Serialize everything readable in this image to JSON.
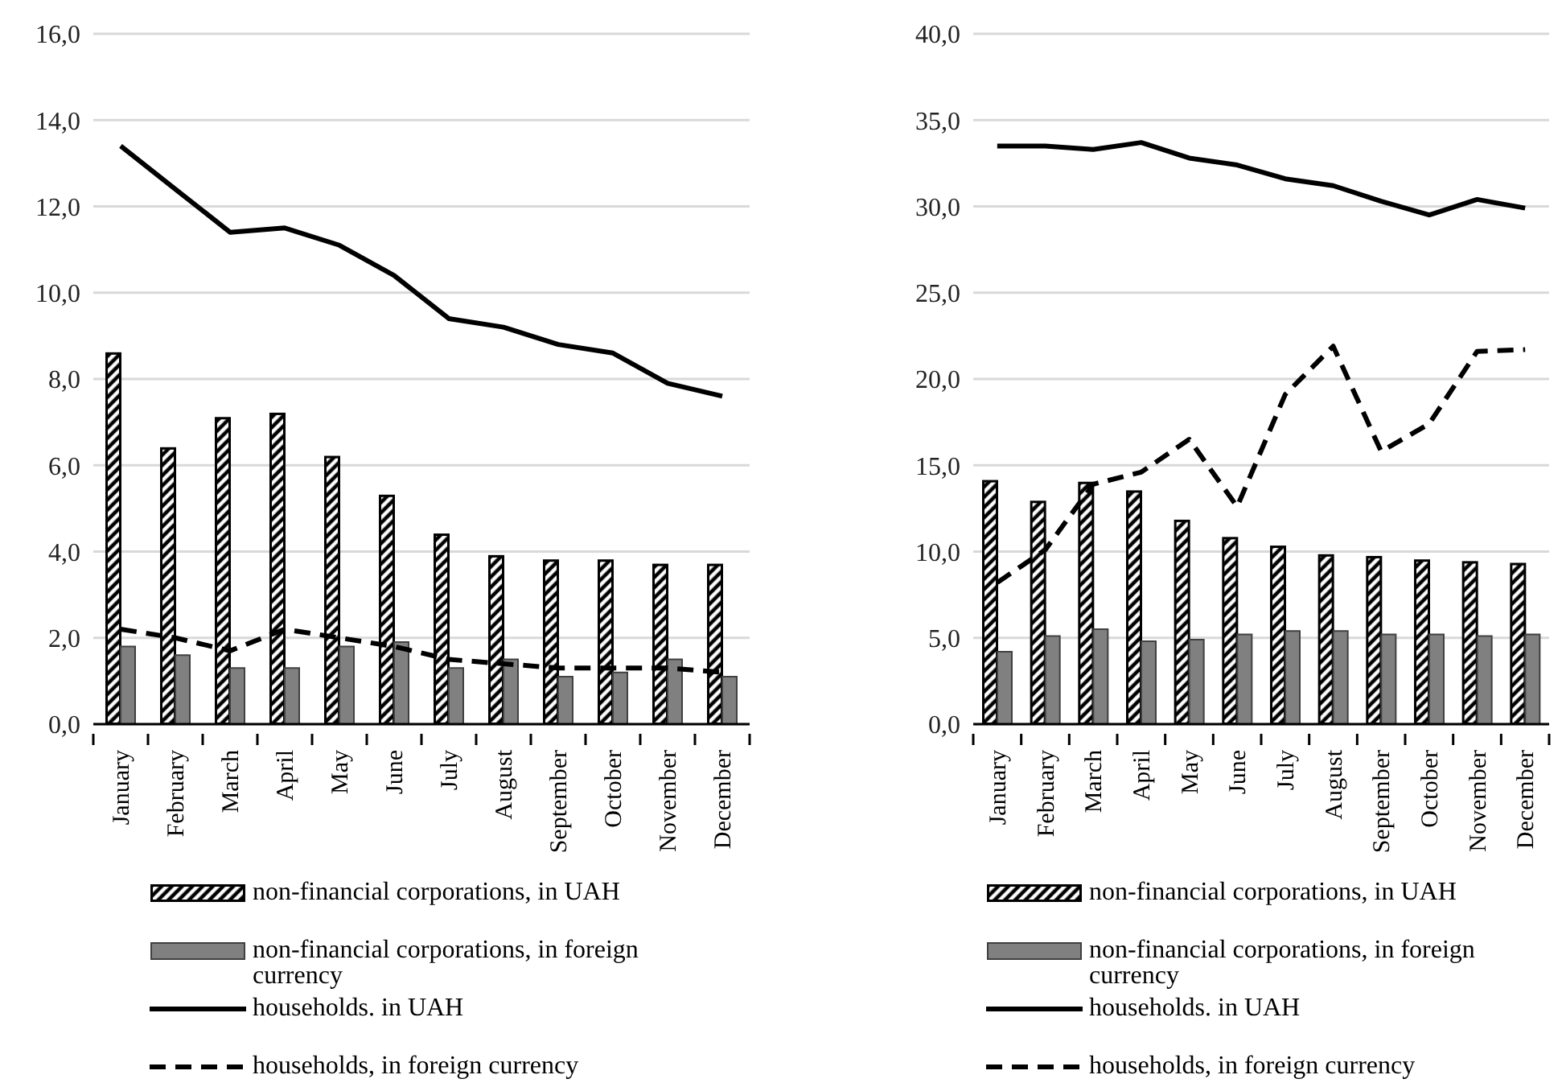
{
  "chart_data": [
    {
      "type": "bar",
      "categories": [
        "January",
        "February",
        "March",
        "April",
        "May",
        "June",
        "July",
        "August",
        "September",
        "October",
        "November",
        "December"
      ],
      "series": [
        {
          "name": "non-financial corporations, in UAH",
          "color": "#000000",
          "values": [
            8.6,
            6.4,
            7.1,
            7.2,
            6.2,
            5.3,
            4.4,
            3.9,
            3.8,
            3.8,
            3.7,
            3.7
          ]
        },
        {
          "name": "non-financial corporations, in foreign currency",
          "color": "#808080",
          "values": [
            1.8,
            1.6,
            1.3,
            1.3,
            1.8,
            1.9,
            1.3,
            1.5,
            1.1,
            1.2,
            1.5,
            1.1
          ]
        },
        {
          "name": "households. in UAH",
          "type": "line",
          "line_style": "solid",
          "color": "#000000",
          "values": [
            13.4,
            12.4,
            11.4,
            11.5,
            11.1,
            10.4,
            9.4,
            9.2,
            8.8,
            8.6,
            7.9,
            7.6
          ]
        },
        {
          "name": "households, in foreign currency",
          "type": "line",
          "line_style": "dashed",
          "color": "#000000",
          "values": [
            2.2,
            2.0,
            1.7,
            2.2,
            2.0,
            1.8,
            1.5,
            1.4,
            1.3,
            1.3,
            1.3,
            1.2
          ]
        }
      ],
      "ylim": [
        0,
        16
      ],
      "yticks": [
        {
          "value": 0,
          "label": "0,0"
        },
        {
          "value": 2,
          "label": "2,0"
        },
        {
          "value": 4,
          "label": "4,0"
        },
        {
          "value": 6,
          "label": "6,0"
        },
        {
          "value": 8,
          "label": "8,0"
        },
        {
          "value": 10,
          "label": "10,0"
        },
        {
          "value": 12,
          "label": "12,0"
        },
        {
          "value": 14,
          "label": "14,0"
        },
        {
          "value": 16,
          "label": "16,0"
        }
      ],
      "grid": "y",
      "legend": "bottom"
    },
    {
      "type": "bar",
      "categories": [
        "January",
        "February",
        "March",
        "April",
        "May",
        "June",
        "July",
        "August",
        "September",
        "October",
        "November",
        "December"
      ],
      "series": [
        {
          "name": "non-financial corporations, in UAH",
          "color": "#000000",
          "values": [
            14.1,
            12.9,
            14.0,
            13.5,
            11.8,
            10.8,
            10.3,
            9.8,
            9.7,
            9.5,
            9.4,
            9.3
          ]
        },
        {
          "name": "non-financial corporations, in foreign currency",
          "color": "#808080",
          "values": [
            4.2,
            5.1,
            5.5,
            4.8,
            4.9,
            5.2,
            5.4,
            5.4,
            5.2,
            5.2,
            5.1,
            5.2
          ]
        },
        {
          "name": "households. in UAH",
          "type": "line",
          "line_style": "solid",
          "color": "#000000",
          "values": [
            33.5,
            33.5,
            33.3,
            33.7,
            32.8,
            32.4,
            31.6,
            31.2,
            30.3,
            29.5,
            30.4,
            29.9
          ]
        },
        {
          "name": "households, in foreign currency",
          "type": "line",
          "line_style": "dashed",
          "color": "#000000",
          "values": [
            8.2,
            10.1,
            13.9,
            14.6,
            16.5,
            12.6,
            19.1,
            21.9,
            15.8,
            17.4,
            21.6,
            21.7
          ]
        }
      ],
      "ylim": [
        0,
        40
      ],
      "yticks": [
        {
          "value": 0,
          "label": "0,0"
        },
        {
          "value": 5,
          "label": "5,0"
        },
        {
          "value": 10,
          "label": "10,0"
        },
        {
          "value": 15,
          "label": "15,0"
        },
        {
          "value": 20,
          "label": "20,0"
        },
        {
          "value": 25,
          "label": "25,0"
        },
        {
          "value": 30,
          "label": "30,0"
        },
        {
          "value": 35,
          "label": "35,0"
        },
        {
          "value": 40,
          "label": "40,0"
        }
      ],
      "grid": "y",
      "legend": "bottom"
    }
  ]
}
